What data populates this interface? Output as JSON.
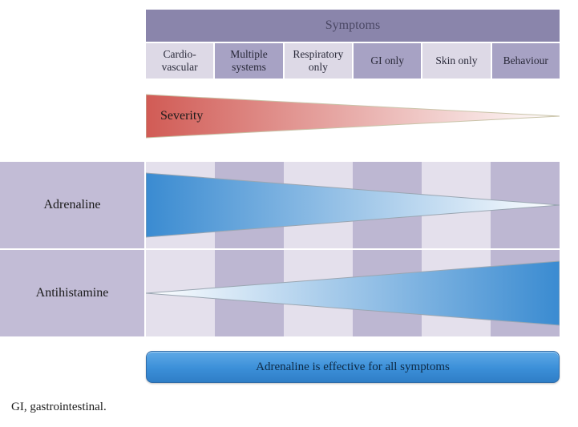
{
  "header": {
    "title": "Symptoms"
  },
  "categories": [
    {
      "label": "Cardio-\nvascular",
      "shade": "light"
    },
    {
      "label": "Multiple systems",
      "shade": "dark"
    },
    {
      "label": "Respiratory only",
      "shade": "light"
    },
    {
      "label": "GI only",
      "shade": "dark"
    },
    {
      "label": "Skin only",
      "shade": "light"
    },
    {
      "label": "Behaviour",
      "shade": "dark"
    }
  ],
  "severity": {
    "label": "Severity",
    "direction": "decreasing_left_to_right",
    "gradient_from": "#d15b55",
    "gradient_to": "#ffffff",
    "border": "#c9c3a8"
  },
  "treatments": [
    {
      "name": "Adrenaline",
      "wedge_direction": "decreasing_left_to_right",
      "gradient_from": "#3a8bd1",
      "gradient_to": "#ffffff",
      "border": "#9aa6b2"
    },
    {
      "name": "Antihistamine",
      "wedge_direction": "increasing_left_to_right",
      "gradient_from": "#ffffff",
      "gradient_to": "#3a8bd1",
      "border": "#9aa6b2"
    }
  ],
  "grid": {
    "bg_alt_colors": [
      "#e4e0ec",
      "#bdb7d2"
    ],
    "row_label_bg": "#c2bcd6"
  },
  "banner": {
    "text": "Adrenaline is effective for all symptoms"
  },
  "footnote": "GI, gastrointestinal.",
  "typography": {
    "font_family": "Georgia/serif",
    "base_size_pt": 12
  }
}
